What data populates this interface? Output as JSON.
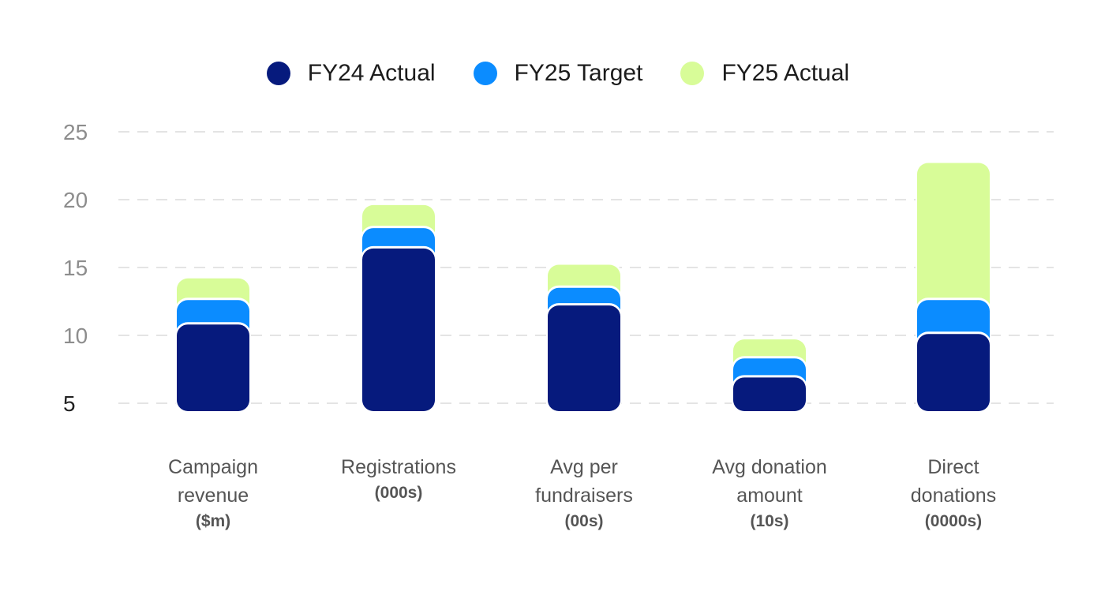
{
  "chart_data": {
    "type": "bar",
    "layout": "overlapping-layered",
    "categories": [
      {
        "name": "Campaign revenue",
        "unit": "($m)"
      },
      {
        "name": "Registrations",
        "unit": "(000s)"
      },
      {
        "name": "Avg per fundraisers",
        "unit": "(00s)"
      },
      {
        "name": "Avg donation amount",
        "unit": "(10s)"
      },
      {
        "name": "Direct donations",
        "unit": "(0000s)"
      }
    ],
    "series": [
      {
        "name": "FY25 Actual",
        "color": "#d8fc98",
        "values": [
          14.2,
          19.6,
          15.2,
          9.7,
          22.7
        ]
      },
      {
        "name": "FY25 Target",
        "color": "#0b8cff",
        "values": [
          12.6,
          17.9,
          13.5,
          8.3,
          12.6
        ]
      },
      {
        "name": "FY24 Actual",
        "color": "#061a7d",
        "values": [
          10.8,
          16.4,
          12.2,
          6.9,
          10.1
        ]
      }
    ],
    "legend": [
      "FY24 Actual",
      "FY25 Target",
      "FY25 Actual"
    ],
    "yticks": [
      "5",
      "10",
      "15",
      "20",
      "25"
    ],
    "ylim": [
      5,
      25
    ],
    "grid": "dashed horizontal",
    "legend_position": "top-center"
  }
}
